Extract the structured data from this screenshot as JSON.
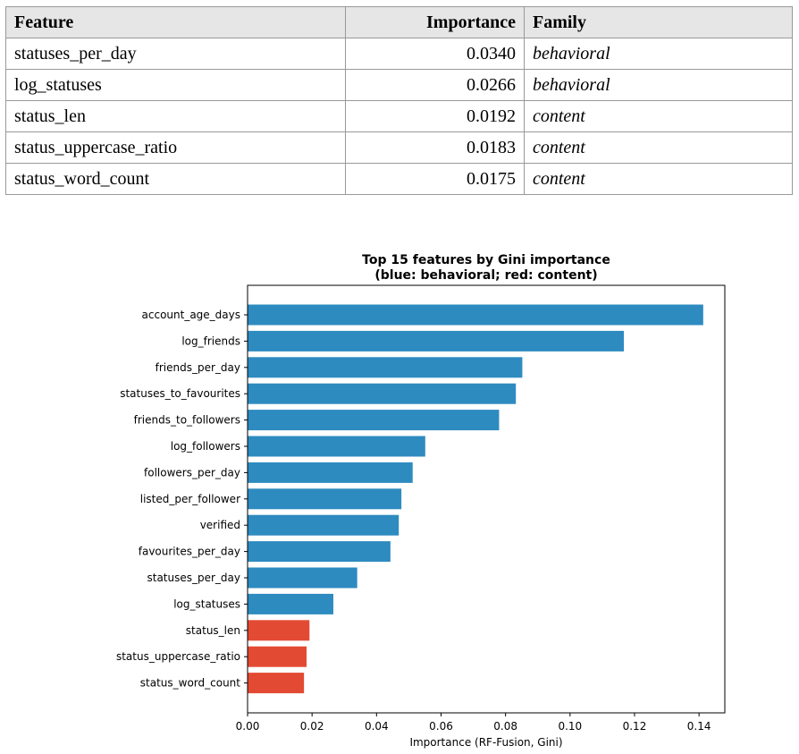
{
  "table": {
    "headers": [
      "Feature",
      "Importance",
      "Family"
    ],
    "rows": [
      {
        "feature": "statuses_per_day",
        "importance": "0.0340",
        "family": "behavioral"
      },
      {
        "feature": "log_statuses",
        "importance": "0.0266",
        "family": "behavioral"
      },
      {
        "feature": "status_len",
        "importance": "0.0192",
        "family": "content"
      },
      {
        "feature": "status_uppercase_ratio",
        "importance": "0.0183",
        "family": "content"
      },
      {
        "feature": "status_word_count",
        "importance": "0.0175",
        "family": "content"
      }
    ]
  },
  "chart_data": {
    "type": "bar",
    "orientation": "horizontal",
    "title": "Top 15 features by Gini importance",
    "subtitle": "(blue: behavioral; red: content)",
    "xlabel": "Importance (RF-Fusion, Gini)",
    "ylabel": "",
    "xlim": [
      0,
      0.148
    ],
    "xticks": [
      "0.00",
      "0.02",
      "0.04",
      "0.06",
      "0.08",
      "0.10",
      "0.12",
      "0.14"
    ],
    "grid": false,
    "colors": {
      "behavioral": "#2e8bc0",
      "content": "#e34a33"
    },
    "categories": [
      "account_age_days",
      "log_friends",
      "friends_per_day",
      "statuses_to_favourites",
      "friends_to_followers",
      "log_followers",
      "followers_per_day",
      "listed_per_follower",
      "verified",
      "favourites_per_day",
      "statuses_per_day",
      "log_statuses",
      "status_len",
      "status_uppercase_ratio",
      "status_word_count"
    ],
    "values": [
      0.1413,
      0.1167,
      0.0852,
      0.0832,
      0.078,
      0.0551,
      0.0512,
      0.0477,
      0.0469,
      0.0443,
      0.034,
      0.0266,
      0.0192,
      0.0183,
      0.0175
    ],
    "families": [
      "behavioral",
      "behavioral",
      "behavioral",
      "behavioral",
      "behavioral",
      "behavioral",
      "behavioral",
      "behavioral",
      "behavioral",
      "behavioral",
      "behavioral",
      "behavioral",
      "content",
      "content",
      "content"
    ]
  }
}
